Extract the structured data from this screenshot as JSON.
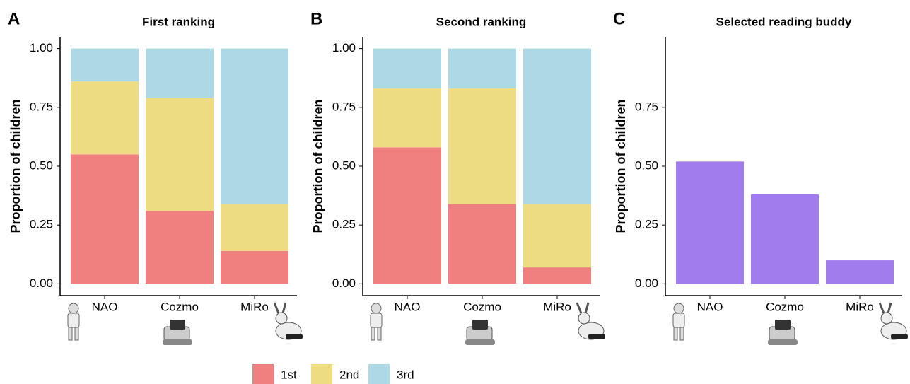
{
  "chart_data": [
    {
      "type": "stacked-bar",
      "label": "A",
      "title": "First ranking",
      "y_label": "Proportion of children",
      "categories": [
        "NAO",
        "Cozmo",
        "MiRo"
      ],
      "series": [
        {
          "name": "1st",
          "color": "#f08080",
          "values": [
            0.55,
            0.31,
            0.14
          ]
        },
        {
          "name": "2nd",
          "color": "#eedc82",
          "values": [
            0.31,
            0.48,
            0.2
          ]
        },
        {
          "name": "3rd",
          "color": "#add8e6",
          "values": [
            0.14,
            0.21,
            0.66
          ]
        }
      ],
      "ylim": [
        -0.05,
        1.05
      ],
      "yticks": [
        {
          "value": 0,
          "label": "0.00"
        },
        {
          "value": 0.25,
          "label": "0.25"
        },
        {
          "value": 0.5,
          "label": "0.50"
        },
        {
          "value": 0.75,
          "label": "0.75"
        },
        {
          "value": 1,
          "label": "1.00"
        }
      ]
    },
    {
      "type": "stacked-bar",
      "label": "B",
      "title": "Second ranking",
      "y_label": "Proportion of children",
      "categories": [
        "NAO",
        "Cozmo",
        "MiRo"
      ],
      "series": [
        {
          "color": "#f08080",
          "values": [
            0.58,
            0.34,
            0.07
          ]
        },
        {
          "color": "#eedc82",
          "values": [
            0.25,
            0.49,
            0.27
          ]
        },
        {
          "color": "#add8e6",
          "values": [
            0.17,
            0.17,
            0.66
          ]
        }
      ],
      "ylim": [
        -0.05,
        1.05
      ],
      "yticks": [
        {
          "value": 0,
          "label": "0.00"
        },
        {
          "value": 0.25,
          "label": "0.25"
        },
        {
          "value": 0.5,
          "label": "0.50"
        },
        {
          "value": 0.75,
          "label": "0.75"
        },
        {
          "value": 1,
          "label": "1.00"
        }
      ]
    },
    {
      "type": "bar",
      "label": "C",
      "title": "Selected reading buddy",
      "y_label": "Proportion of children",
      "categories": [
        "NAO",
        "Cozmo",
        "MiRo"
      ],
      "color": "#a07cec",
      "values": [
        0.52,
        0.38,
        0.1
      ],
      "ylim": [
        -0.05,
        1.05
      ],
      "yticks": [
        {
          "value": 0,
          "label": "0.00"
        },
        {
          "value": 0.25,
          "label": "0.25"
        },
        {
          "value": 0.5,
          "label": "0.50"
        },
        {
          "value": 0.75,
          "label": "0.75"
        }
      ]
    }
  ]
}
